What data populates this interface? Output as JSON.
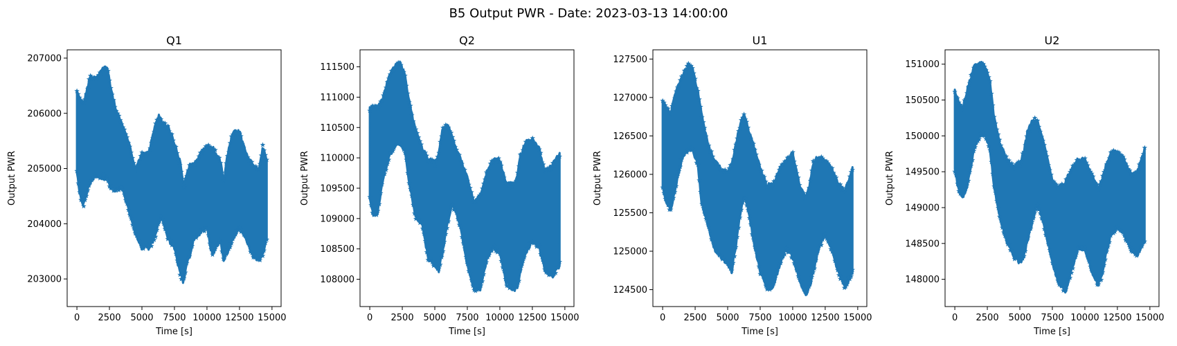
{
  "figure": {
    "title": "B5 Output PWR - Date: 2023-03-13 14:00:00",
    "marker": "*",
    "color": "#1f77b4"
  },
  "chart_data": [
    {
      "type": "scatter",
      "title": "Q1",
      "xlabel": "Time [s]",
      "ylabel": "Output PWR",
      "xlim": [
        -750,
        15700
      ],
      "ylim": [
        202500,
        207150
      ],
      "xticks": [
        0,
        2500,
        5000,
        7500,
        10000,
        12500,
        15000
      ],
      "yticks": [
        203000,
        204000,
        205000,
        206000,
        207000
      ],
      "grid": false,
      "series": [
        {
          "x_range": [
            0,
            14600
          ],
          "envelope": {
            "t": [
              0,
              200,
              500,
              1000,
              1500,
              2000,
              2300,
              2600,
              3000,
              3500,
              4000,
              4500,
              5000,
              5300,
              5500,
              6000,
              6300,
              6500,
              7000,
              7500,
              8000,
              8200,
              8500,
              8700,
              9000,
              9500,
              10000,
              10300,
              10500,
              11000,
              11300,
              11500,
              12000,
              12500,
              13000,
              13500,
              14000,
              14300,
              14600
            ],
            "upper": [
              206450,
              206300,
              206200,
              206700,
              206700,
              206850,
              206900,
              206500,
              206100,
              205800,
              205500,
              205000,
              205300,
              205300,
              205300,
              205800,
              206000,
              205900,
              205800,
              205500,
              205100,
              204700,
              205000,
              205100,
              205100,
              205300,
              205450,
              205400,
              205400,
              205200,
              204800,
              205200,
              205700,
              205700,
              205300,
              205100,
              205000,
              205450,
              205200
            ],
            "lower": [
              204900,
              204500,
              204300,
              204700,
              204850,
              204800,
              204800,
              204600,
              204600,
              204600,
              204200,
              203800,
              203500,
              203600,
              203500,
              203700,
              204000,
              204100,
              203700,
              203500,
              203000,
              202900,
              203300,
              203400,
              203700,
              203800,
              203900,
              203500,
              203400,
              203700,
              203300,
              203400,
              203700,
              203900,
              203700,
              203400,
              203300,
              203400,
              203700
            ]
          }
        }
      ]
    },
    {
      "type": "scatter",
      "title": "Q2",
      "xlabel": "Time [s]",
      "ylabel": "Output PWR",
      "xlim": [
        -750,
        15700
      ],
      "ylim": [
        107550,
        111780
      ],
      "xticks": [
        0,
        2500,
        5000,
        7500,
        10000,
        12500,
        15000
      ],
      "yticks": [
        108000,
        108500,
        109000,
        109500,
        110000,
        110500,
        111000,
        111500
      ],
      "grid": false,
      "series": [
        {
          "x_range": [
            0,
            14600
          ],
          "envelope": {
            "t": [
              0,
              300,
              600,
              1000,
              1500,
              2000,
              2300,
              2700,
              3000,
              3500,
              4000,
              4500,
              5000,
              5300,
              5600,
              6000,
              6300,
              6600,
              7000,
              7500,
              8000,
              8500,
              9000,
              9500,
              10000,
              10500,
              11000,
              11300,
              11600,
              12000,
              12500,
              13000,
              13500,
              14000,
              14600
            ],
            "upper": [
              110850,
              110900,
              110850,
              111000,
              111400,
              111550,
              111600,
              111400,
              111000,
              110500,
              110200,
              110000,
              109950,
              110100,
              110500,
              110600,
              110400,
              110200,
              110000,
              109700,
              109300,
              109400,
              109800,
              110000,
              110000,
              109600,
              109600,
              109700,
              110100,
              110300,
              110350,
              110200,
              109800,
              109900,
              110100
            ],
            "lower": [
              109300,
              109000,
              109050,
              109600,
              110000,
              110200,
              110200,
              110100,
              109600,
              109000,
              108900,
              108300,
              108200,
              108100,
              108400,
              108900,
              109200,
              109100,
              108800,
              108200,
              107800,
              107800,
              108300,
              108500,
              108400,
              107900,
              107800,
              107800,
              108100,
              108400,
              108600,
              108500,
              108100,
              108000,
              108200
            ]
          }
        }
      ]
    },
    {
      "type": "scatter",
      "title": "U1",
      "xlabel": "Time [s]",
      "ylabel": "Output PWR",
      "xlim": [
        -750,
        15700
      ],
      "ylim": [
        124280,
        127620
      ],
      "xticks": [
        0,
        2500,
        5000,
        7500,
        10000,
        12500,
        15000
      ],
      "yticks": [
        124500,
        125000,
        125500,
        126000,
        126500,
        127000,
        127500
      ],
      "grid": false,
      "series": [
        {
          "x_range": [
            0,
            14600
          ],
          "envelope": {
            "t": [
              0,
              300,
              600,
              1000,
              1500,
              2000,
              2300,
              2700,
              3000,
              3500,
              4000,
              4500,
              5000,
              5300,
              5600,
              6000,
              6300,
              6600,
              7000,
              7500,
              8000,
              8500,
              9000,
              9500,
              10000,
              10500,
              11000,
              11300,
              11600,
              12000,
              12500,
              13000,
              13500,
              14000,
              14600
            ],
            "upper": [
              127000,
              126900,
              126800,
              127100,
              127300,
              127450,
              127400,
              127100,
              126800,
              126400,
              126200,
              126100,
              126050,
              126150,
              126400,
              126700,
              126800,
              126600,
              126400,
              126100,
              125900,
              125900,
              126100,
              126200,
              126300,
              125900,
              125700,
              125900,
              126200,
              126250,
              126200,
              126100,
              125900,
              125800,
              126100
            ],
            "lower": [
              125800,
              125600,
              125500,
              125800,
              126200,
              126300,
              126300,
              126100,
              125600,
              125300,
              125000,
              124900,
              124800,
              124700,
              125000,
              125500,
              125700,
              125500,
              125100,
              124700,
              124500,
              124500,
              124800,
              125000,
              124900,
              124600,
              124400,
              124500,
              124700,
              125000,
              125200,
              125000,
              124700,
              124500,
              124700
            ]
          }
        }
      ]
    },
    {
      "type": "scatter",
      "title": "U2",
      "xlabel": "Time [s]",
      "ylabel": "Output PWR",
      "xlim": [
        -750,
        15700
      ],
      "ylim": [
        147620,
        151200
      ],
      "xticks": [
        0,
        2500,
        5000,
        7500,
        10000,
        12500,
        15000
      ],
      "yticks": [
        148000,
        148500,
        149000,
        149500,
        150000,
        150500,
        151000
      ],
      "grid": false,
      "series": [
        {
          "x_range": [
            0,
            14600
          ],
          "envelope": {
            "t": [
              0,
              300,
              600,
              1000,
              1500,
              2000,
              2300,
              2700,
              3000,
              3500,
              4000,
              4500,
              5000,
              5300,
              5600,
              6000,
              6300,
              6600,
              7000,
              7500,
              8000,
              8500,
              9000,
              9500,
              10000,
              10500,
              11000,
              11300,
              11600,
              12000,
              12500,
              13000,
              13500,
              14000,
              14600
            ],
            "upper": [
              150650,
              150500,
              150400,
              150700,
              151000,
              151050,
              151000,
              150800,
              150300,
              149900,
              149700,
              149600,
              149650,
              149800,
              150100,
              150250,
              150250,
              150100,
              149800,
              149400,
              149300,
              149400,
              149600,
              149700,
              149700,
              149500,
              149300,
              149400,
              149600,
              149800,
              149800,
              149700,
              149500,
              149500,
              149850
            ],
            "lower": [
              149500,
              149200,
              149100,
              149300,
              149800,
              150000,
              150000,
              149800,
              149300,
              148800,
              148500,
              148300,
              148200,
              148300,
              148500,
              148800,
              149000,
              148900,
              148600,
              148200,
              147900,
              147800,
              148100,
              148400,
              148400,
              148100,
              147900,
              148000,
              148300,
              148600,
              148700,
              148600,
              148400,
              148300,
              148500
            ]
          }
        }
      ]
    }
  ]
}
